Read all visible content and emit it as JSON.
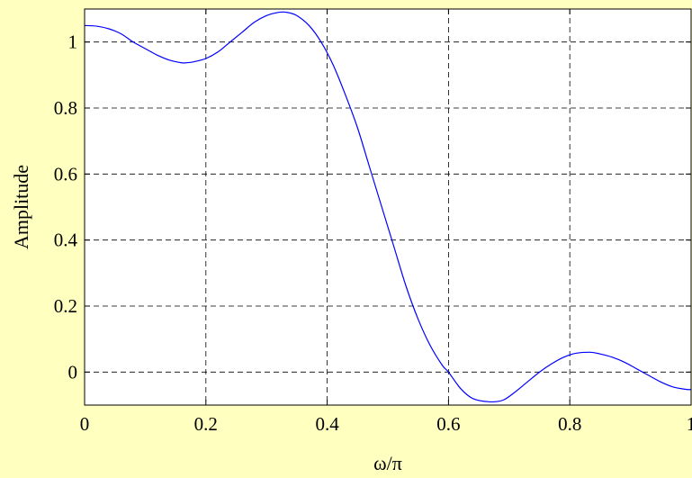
{
  "chart_data": {
    "type": "line",
    "title": "",
    "xlabel": "ω/π",
    "ylabel": "Amplitude",
    "xlim": [
      0,
      1
    ],
    "ylim": [
      -0.1,
      1.1
    ],
    "grid": true,
    "legend": "none",
    "xticks": [
      "0",
      "0.2",
      "0.4",
      "0.6",
      "0.8",
      "1"
    ],
    "xtick_values": [
      0,
      0.2,
      0.4,
      0.6,
      0.8,
      1
    ],
    "yticks": [
      "0",
      "0.2",
      "0.4",
      "0.6",
      "0.8",
      "1"
    ],
    "ytick_values": [
      0,
      0.2,
      0.4,
      0.6,
      0.8,
      1
    ],
    "colors": {
      "background": "#ffffc0",
      "plot_area": "#ffffff",
      "line": "#0000ff",
      "grid": "#000000"
    },
    "series": [
      {
        "x": [
          0,
          0.02,
          0.04,
          0.06,
          0.08,
          0.1,
          0.12,
          0.14,
          0.16,
          0.167,
          0.18,
          0.2,
          0.22,
          0.24,
          0.26,
          0.28,
          0.3,
          0.32,
          0.333,
          0.35,
          0.37,
          0.39,
          0.41,
          0.43,
          0.45,
          0.47,
          0.49,
          0.51,
          0.53,
          0.55,
          0.57,
          0.59,
          0.6,
          0.62,
          0.64,
          0.667,
          0.69,
          0.71,
          0.73,
          0.75,
          0.77,
          0.79,
          0.81,
          0.833,
          0.85,
          0.87,
          0.89,
          0.91,
          0.93,
          0.95,
          0.97,
          0.99,
          1.0
        ],
        "values": [
          1.05,
          1.048,
          1.04,
          1.025,
          1.0,
          0.98,
          0.96,
          0.945,
          0.937,
          0.937,
          0.94,
          0.95,
          0.97,
          1.0,
          1.03,
          1.06,
          1.08,
          1.09,
          1.09,
          1.08,
          1.05,
          1.0,
          0.93,
          0.84,
          0.74,
          0.62,
          0.5,
          0.38,
          0.26,
          0.16,
          0.08,
          0.02,
          0.0,
          -0.05,
          -0.08,
          -0.09,
          -0.085,
          -0.06,
          -0.03,
          0.0,
          0.025,
          0.045,
          0.057,
          0.06,
          0.055,
          0.045,
          0.03,
          0.01,
          -0.01,
          -0.03,
          -0.045,
          -0.052,
          -0.053
        ]
      }
    ]
  }
}
